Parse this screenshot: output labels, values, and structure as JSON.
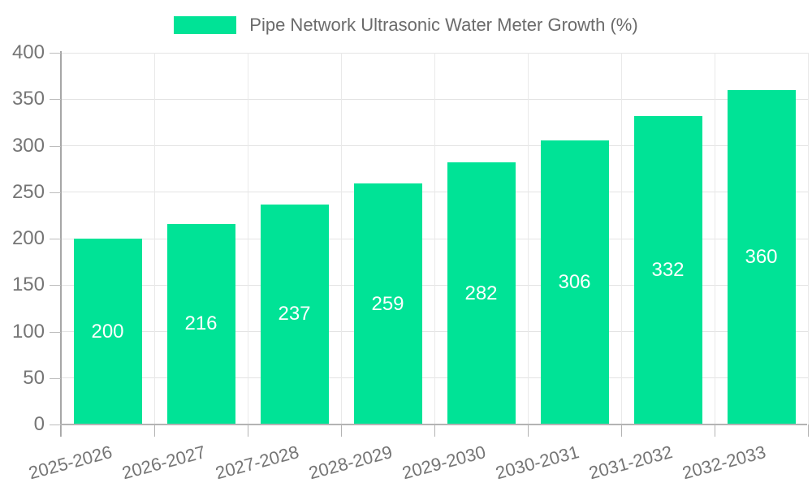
{
  "legend": {
    "label": "Pipe Network Ultrasonic Water Meter Growth (%)"
  },
  "colors": {
    "bar": "#00E396",
    "value_label": "#ffffff",
    "axis_text": "#757575",
    "legend_text": "#6b6b6b",
    "grid": "#e4e4e4",
    "axis_line": "#a6a6a6"
  },
  "chart_data": {
    "type": "bar",
    "title": "Pipe Network Ultrasonic Water Meter Growth (%)",
    "series": [
      {
        "name": "Pipe Network Ultrasonic Water Meter Growth (%)",
        "values": [
          200,
          216,
          237,
          259,
          282,
          306,
          332,
          360
        ]
      }
    ],
    "categories": [
      "2025-2026",
      "2026-2027",
      "2027-2028",
      "2028-2029",
      "2029-2030",
      "2030-2031",
      "2031-2032",
      "2032-2033"
    ],
    "xlabel": "",
    "ylabel": "",
    "ylim": [
      0,
      400
    ],
    "yticks": [
      0,
      50,
      100,
      150,
      200,
      250,
      300,
      350,
      400
    ],
    "grid": true,
    "legend_position": "top",
    "value_labels": "inside-center"
  }
}
